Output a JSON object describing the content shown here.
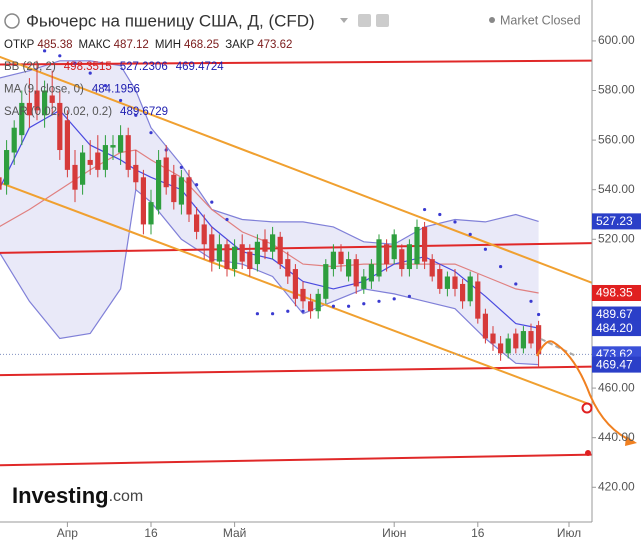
{
  "chart_data": {
    "type": "candlestick",
    "title": "Фьючерс на пшеницу США, Д, (CFD)",
    "status": "Market Closed",
    "ohlc_header": [
      {
        "label": "ОТКР",
        "value": 485.38
      },
      {
        "label": "МАКС",
        "value": 487.12
      },
      {
        "label": "МИН",
        "value": 468.25
      },
      {
        "label": "ЗАКР",
        "value": 473.62
      }
    ],
    "legend": [
      {
        "label": "BB (20, 2)",
        "values": [
          498.3515,
          527.2306,
          469.4724
        ],
        "colors": [
          "#d42020",
          "#2020b0",
          "#2020b0"
        ]
      },
      {
        "label": "MA (9, close, 0)",
        "values": [
          484.1956
        ],
        "colors": [
          "#2020b0"
        ]
      },
      {
        "label": "SAR (0.02, 0.02, 0.2)",
        "values": [
          489.6729
        ],
        "colors": [
          "#2020b0"
        ]
      }
    ],
    "categories": [
      null,
      null,
      null,
      null,
      null,
      null,
      null,
      null,
      null,
      "Апр",
      null,
      null,
      null,
      null,
      null,
      null,
      null,
      null,
      null,
      null,
      "16",
      null,
      null,
      null,
      null,
      null,
      null,
      null,
      null,
      null,
      null,
      "Май",
      null,
      null,
      null,
      null,
      null,
      null,
      null,
      null,
      null,
      null,
      null,
      null,
      null,
      null,
      null,
      null,
      null,
      null,
      null,
      null,
      "Июн",
      null,
      null,
      null,
      null,
      null,
      null,
      null,
      null,
      null,
      null,
      "16",
      null,
      null,
      null,
      null,
      null,
      null,
      null,
      null,
      null,
      null,
      null,
      "Июл"
    ],
    "open": [
      545,
      542,
      555,
      562,
      575,
      580,
      570,
      578,
      575,
      568,
      550,
      542,
      552,
      555,
      548,
      557,
      555,
      562,
      550,
      545,
      526,
      532,
      553,
      546,
      534,
      545,
      530,
      526,
      522,
      511,
      518,
      508,
      518,
      515,
      510,
      520,
      515,
      521,
      512,
      508,
      500,
      495,
      491,
      496,
      508,
      515,
      505,
      512,
      500,
      503,
      505,
      518,
      512,
      516,
      508,
      510,
      525,
      512,
      508,
      500,
      505,
      502,
      495,
      503,
      490,
      482,
      478,
      474,
      482,
      476,
      483,
      485.38,
      null,
      null,
      null,
      null
    ],
    "high": [
      552,
      560,
      568,
      580,
      585,
      592,
      584,
      588,
      580,
      572,
      556,
      558,
      560,
      562,
      562,
      562,
      566,
      565,
      556,
      548,
      540,
      556,
      558,
      550,
      548,
      548,
      533,
      530,
      525,
      522,
      520,
      520,
      522,
      518,
      522,
      524,
      525,
      523,
      515,
      510,
      503,
      498,
      500,
      512,
      518,
      518,
      515,
      514,
      508,
      512,
      522,
      520,
      524,
      518,
      520,
      528,
      527,
      514,
      510,
      507,
      508,
      504,
      507,
      506,
      492,
      485,
      481,
      482,
      484,
      485,
      486,
      487.12,
      null,
      null,
      null,
      null
    ],
    "low": [
      535,
      538,
      550,
      558,
      565,
      568,
      565,
      570,
      552,
      545,
      535,
      538,
      546,
      545,
      545,
      552,
      550,
      545,
      540,
      522,
      522,
      530,
      538,
      532,
      530,
      527,
      520,
      512,
      507,
      508,
      505,
      505,
      508,
      505,
      507,
      512,
      512,
      508,
      502,
      493,
      492,
      488,
      488,
      494,
      505,
      507,
      503,
      498,
      498,
      500,
      503,
      507,
      510,
      505,
      505,
      508,
      508,
      503,
      498,
      497,
      497,
      492,
      493,
      486,
      478,
      475,
      471,
      472,
      474,
      474,
      476,
      468.25,
      null,
      null,
      null,
      null
    ],
    "close": [
      540,
      556,
      565,
      575,
      570,
      572,
      580,
      575,
      556,
      548,
      540,
      555,
      550,
      548,
      558,
      558,
      562,
      548,
      543,
      526,
      535,
      552,
      541,
      535,
      545,
      530,
      523,
      518,
      511,
      518,
      508,
      517,
      511,
      508,
      519,
      515,
      522,
      510,
      505,
      496,
      495,
      491,
      498,
      510,
      515,
      510,
      512,
      501,
      505,
      510,
      520,
      510,
      522,
      508,
      518,
      525,
      511,
      505,
      500,
      505,
      500,
      495,
      505,
      488,
      480,
      478,
      474,
      480,
      476,
      483,
      478,
      473.62,
      null,
      null,
      null,
      null
    ],
    "up_color": "#2e9e3e",
    "down_color": "#d63a3a",
    "bb": {
      "color": "#8080d8",
      "fill": "#e4e4f6",
      "mid_color": "#e08080",
      "x": [
        0,
        4,
        8,
        12,
        16,
        18,
        20,
        24,
        28,
        32,
        36,
        40,
        44,
        48,
        52,
        56,
        60,
        64,
        68,
        71
      ],
      "upper": [
        585,
        588,
        592,
        592,
        590,
        580,
        565,
        550,
        532,
        528,
        527,
        527,
        525,
        519,
        518,
        525,
        528,
        527,
        530,
        527.23
      ],
      "middle": [
        525,
        532,
        540,
        548,
        555,
        556,
        552,
        545,
        532,
        523,
        518,
        510,
        509,
        510,
        510,
        510,
        510,
        505,
        500,
        498.35
      ],
      "lower": [
        515,
        495,
        480,
        482,
        500,
        540,
        535,
        520,
        512,
        510,
        505,
        490,
        495,
        500,
        498,
        495,
        492,
        480,
        470,
        469.47
      ]
    },
    "ma": {
      "color": "#4a4ae0",
      "x": [
        0,
        4,
        8,
        12,
        16,
        18,
        20,
        24,
        28,
        32,
        36,
        40,
        44,
        48,
        52,
        56,
        60,
        64,
        68,
        71
      ],
      "values": [
        540,
        565,
        572,
        558,
        552,
        548,
        545,
        540,
        525,
        515,
        512,
        503,
        500,
        503,
        510,
        513,
        507,
        497,
        486,
        484.2
      ]
    },
    "sar": {
      "color": "#3a3ad0",
      "x": [
        6,
        8,
        10,
        12,
        14,
        16,
        18,
        20,
        22,
        24,
        26,
        28,
        30,
        34,
        36,
        38,
        40,
        42,
        44,
        46,
        48,
        50,
        52,
        54,
        56,
        58,
        60,
        62,
        64,
        66,
        68,
        70,
        71
      ],
      "values": [
        596,
        594,
        591,
        587,
        582,
        576,
        570,
        563,
        556,
        549,
        542,
        535,
        528,
        490,
        490,
        491,
        491,
        492,
        493,
        493,
        494,
        495,
        496,
        497,
        532,
        530,
        527,
        522,
        516,
        509,
        502,
        495,
        489.6729
      ]
    },
    "trendlines": [
      {
        "color": "#e02828",
        "x": [
          0,
          75
        ],
        "values": [
          590.5,
          592
        ]
      },
      {
        "color": "#e02828",
        "x": [
          0,
          75
        ],
        "values": [
          514.5,
          518.3
        ]
      },
      {
        "color": "#e02828",
        "x": [
          0,
          75
        ],
        "values": [
          465.2,
          468.5
        ]
      },
      {
        "color": "#e02828",
        "x": [
          0,
          75
        ],
        "values": [
          428.9,
          433
        ]
      },
      {
        "color": "#f0a030",
        "x": [
          4,
          75
        ],
        "values": [
          589,
          506
        ]
      },
      {
        "color": "#f0a030",
        "x": [
          0,
          75
        ],
        "values": [
          543,
          456.6
        ]
      }
    ],
    "price_tags": [
      {
        "value": 527.23,
        "label": "527.23",
        "color": "#2b3fc8"
      },
      {
        "value": 498.35,
        "label": "498.35",
        "color": "#e02020"
      },
      {
        "value": 489.67,
        "label": "489.67",
        "color": "#2b3fc8"
      },
      {
        "value": 484.2,
        "label": "484.20",
        "color": "#2b3fc8"
      },
      {
        "value": 473.62,
        "label": "473.62",
        "color": "#3a50d8"
      },
      {
        "value": 469.47,
        "label": "469.47",
        "color": "#2b3fc8"
      }
    ],
    "ylim": [
      406,
      616.5
    ],
    "yticks": [
      {
        "value": 420,
        "label": "420.00"
      },
      {
        "value": 440,
        "label": "440.00"
      },
      {
        "value": 460,
        "label": "460.00"
      },
      {
        "value": 520,
        "label": "520.00"
      },
      {
        "value": 540,
        "label": "540.00"
      },
      {
        "value": 560,
        "label": "560.00"
      },
      {
        "value": 580,
        "label": "580.00"
      },
      {
        "value": 600,
        "label": "600.00"
      }
    ],
    "logo": {
      "brand": "Investing",
      "suffix": ".com"
    }
  }
}
